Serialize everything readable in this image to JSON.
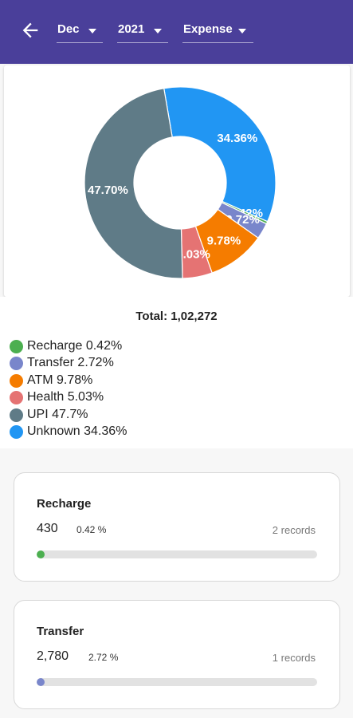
{
  "header": {
    "back_icon": "arrow-left-icon",
    "month": "Dec",
    "year": "2021",
    "type": "Expense",
    "background": "#4a3f9a"
  },
  "chart_data": {
    "type": "pie",
    "style": "donut",
    "title": "",
    "categories": [
      "Unknown",
      "Recharge",
      "Transfer",
      "ATM",
      "Health",
      "UPI"
    ],
    "values": [
      34.36,
      0.42,
      2.72,
      9.78,
      5.03,
      47.7
    ],
    "labels": [
      "34.36%",
      "0.42%",
      "2.72%",
      "9.78%",
      "5.03%",
      "47.70%"
    ],
    "colors": [
      "#2196f3",
      "#4caf50",
      "#7986cb",
      "#f57c00",
      "#e57373",
      "#5f7b87"
    ]
  },
  "summary": {
    "total": "Total: 1,02,272"
  },
  "legend": [
    {
      "label": "Recharge 0.42%",
      "color": "#4caf50"
    },
    {
      "label": "Transfer 2.72%",
      "color": "#7986cb"
    },
    {
      "label": "ATM 9.78%",
      "color": "#f57c00"
    },
    {
      "label": "Health 5.03%",
      "color": "#e57373"
    },
    {
      "label": "UPI 47.7%",
      "color": "#5f7b87"
    },
    {
      "label": "Unknown 34.36%",
      "color": "#2196f3"
    }
  ],
  "cards": [
    {
      "category": "Recharge",
      "amount": "430",
      "percent_text": "0.42 %",
      "records": "2 records",
      "progress": 0.0042,
      "color": "#4caf50"
    },
    {
      "category": "Transfer",
      "amount": "2,780",
      "percent_text": "2.72 %",
      "records": "1 records",
      "progress": 0.0272,
      "color": "#7986cb"
    }
  ]
}
